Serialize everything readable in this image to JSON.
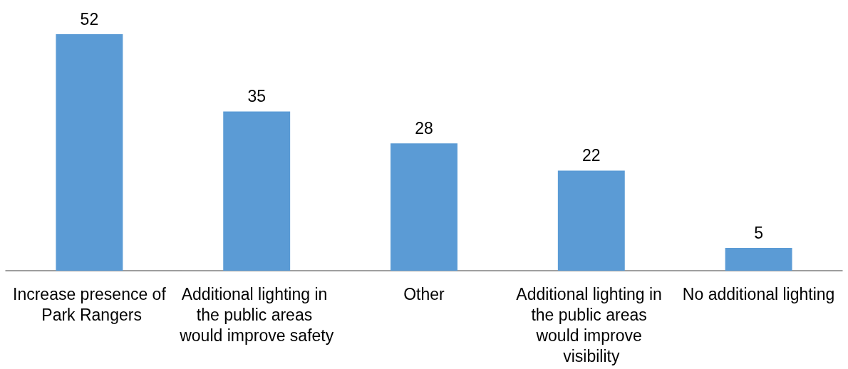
{
  "chart_data": {
    "type": "bar",
    "categories": [
      "Increase presence of Park Rangers",
      "Additional lighting in the public areas would improve safety",
      "Other",
      "Additional lighting in the public areas would improve visibility",
      "No additional lighting"
    ],
    "values": [
      52,
      35,
      28,
      22,
      5
    ],
    "color": "#5b9bd5",
    "data_labels": true
  }
}
